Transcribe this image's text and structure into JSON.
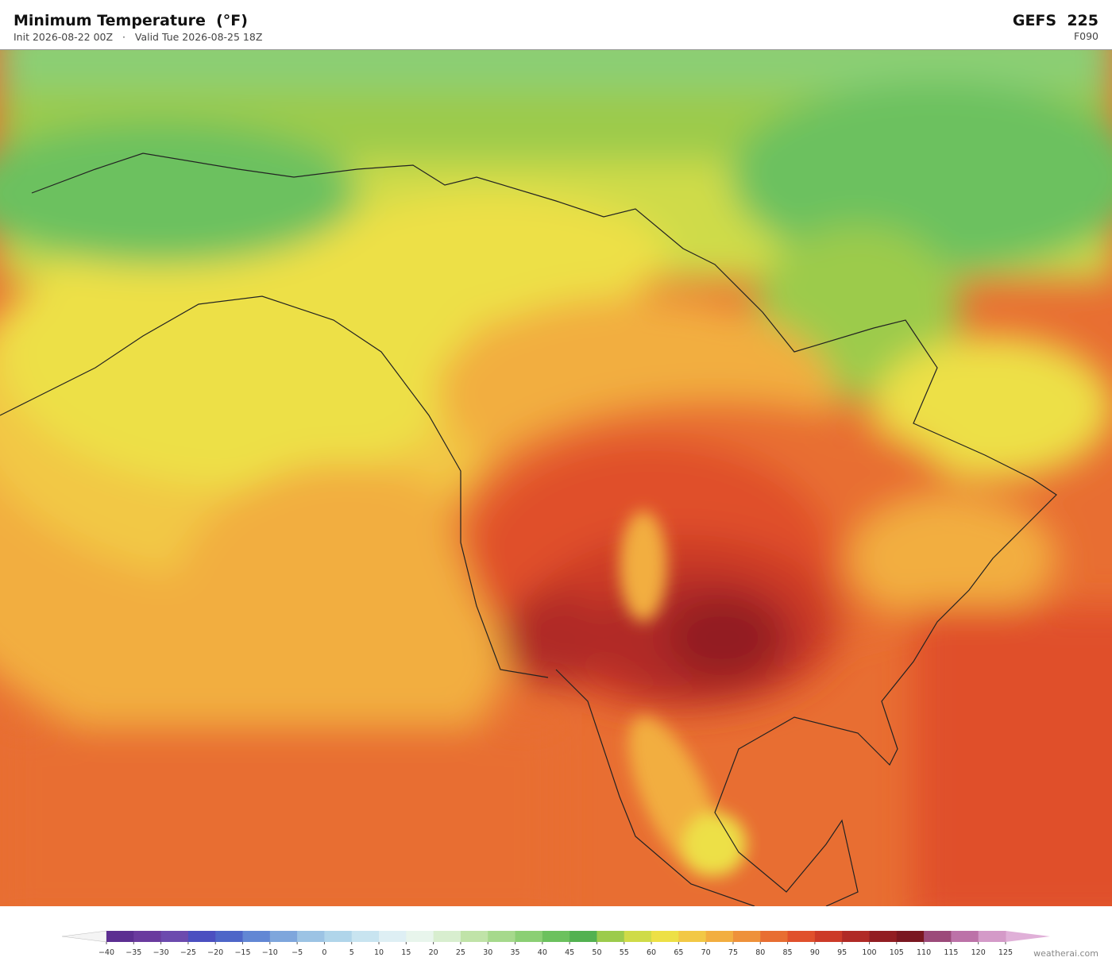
{
  "header": {
    "title": "Minimum Temperature  (°F)",
    "init": "Init 2026-08-22 00Z",
    "separator": "·",
    "valid": "Valid Tue 2026-08-25 18Z",
    "model": "GEFS  225",
    "forecast_hour": "F090"
  },
  "colorbar": {
    "ticks": [
      {
        "value": -40,
        "label": "−40"
      },
      {
        "value": -35,
        "label": "−35"
      },
      {
        "value": -30,
        "label": "−30"
      },
      {
        "value": -25,
        "label": "−25"
      },
      {
        "value": -20,
        "label": "−20"
      },
      {
        "value": -15,
        "label": "−15"
      },
      {
        "value": -10,
        "label": "−10"
      },
      {
        "value": -5,
        "label": "−5"
      },
      0,
      5,
      10,
      15,
      20,
      25,
      30,
      35,
      40,
      45,
      50,
      55,
      60,
      65,
      70,
      75,
      80,
      85,
      90,
      95,
      100,
      105,
      110,
      115,
      120,
      125
    ],
    "colors": [
      "#5c2e91",
      "#6a3a9e",
      "#6c4aae",
      "#4b4fc0",
      "#4e66c8",
      "#6287d4",
      "#7ea6dc",
      "#9cc3e4",
      "#b0d5ea",
      "#c8e4f0",
      "#deeff4",
      "#e8f5ec",
      "#d8eecf",
      "#c0e3a8",
      "#a6d98c",
      "#8bcf74",
      "#6cc15e",
      "#52b150",
      "#9ccb4c",
      "#cfdb48",
      "#ede046",
      "#f2c845",
      "#f2ae40",
      "#ee913a",
      "#e86e32",
      "#e0502c",
      "#cc3a28",
      "#b02a26",
      "#921d22",
      "#7a1620",
      "#9c4a7a",
      "#bc72a8",
      "#d49ac8"
    ],
    "under_color": "#f4f4f4",
    "over_color": "#e0b0d8"
  },
  "footer": {
    "credit": "weatherai.com"
  }
}
